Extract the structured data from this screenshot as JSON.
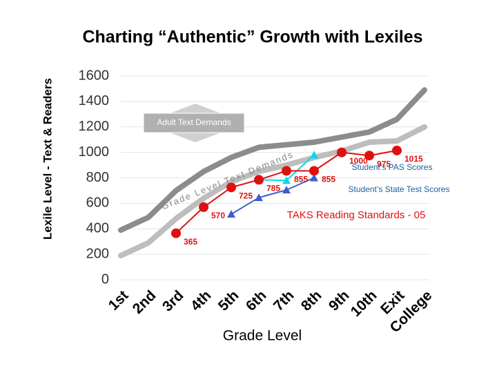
{
  "chart_data": {
    "type": "line",
    "title": "Charting “Authentic” Growth with Lexiles",
    "y_label": "Lexile Level - Text & Readers",
    "x_label": "Grade Level",
    "categories": [
      "1st",
      "2nd",
      "3rd",
      "4th",
      "5th",
      "6th",
      "7th",
      "8th",
      "9th",
      "10th",
      "Exit",
      "College"
    ],
    "ylim": [
      0,
      1600
    ],
    "yticks": [
      0,
      200,
      400,
      600,
      800,
      1000,
      1200,
      1400,
      1600
    ],
    "grid": true,
    "series": [
      {
        "color": "#8c8c8c",
        "marker": "none",
        "values": [
          390,
          490,
          700,
          850,
          960,
          1040,
          1060,
          1080,
          1120,
          1160,
          1260,
          1490
        ]
      },
      {
        "color": "#bdbdbd",
        "marker": "none",
        "values": [
          190,
          290,
          480,
          640,
          770,
          850,
          900,
          960,
          1010,
          1080,
          1090,
          1200
        ]
      },
      {
        "color": "#3a5fcd",
        "marker": "triangle",
        "values": [
          null,
          null,
          null,
          null,
          515,
          645,
          705,
          800,
          null,
          null,
          null,
          null
        ]
      },
      {
        "color": "#00d8f0",
        "marker": "triangle",
        "values": [
          null,
          null,
          null,
          null,
          null,
          785,
          780,
          980,
          null,
          null,
          null,
          null
        ]
      },
      {
        "color": "#e01010",
        "marker": "circle",
        "data_labels": true,
        "values": [
          null,
          null,
          365,
          570,
          725,
          785,
          855,
          855,
          1000,
          975,
          1015,
          null
        ]
      }
    ],
    "annotations": {
      "adult": "Adult Text Demands",
      "grade": "Grade Level Text Demands",
      "pas": "Student’s PAS Scores",
      "state": "Student’s State Test Scores",
      "taks": "TAKS Reading Standards - 05"
    }
  }
}
